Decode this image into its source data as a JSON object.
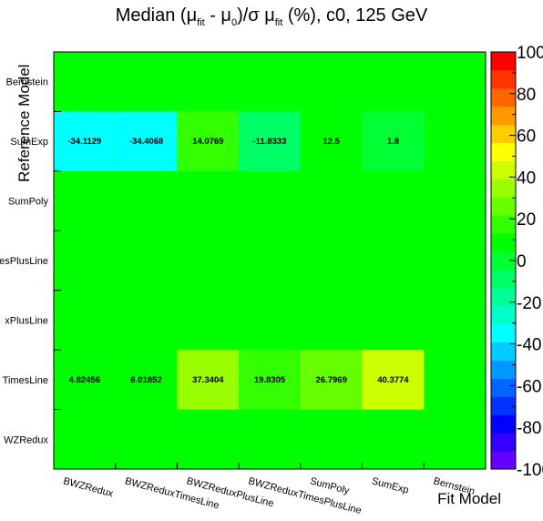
{
  "chart_data": {
    "type": "heatmap",
    "title": {
      "parts": [
        {
          "t": "Median (μ",
          "sub": false
        },
        {
          "t": "fit",
          "sub": true
        },
        {
          "t": " - μ",
          "sub": false
        },
        {
          "t": "0",
          "sub": true
        },
        {
          "t": ")/σ μ",
          "sub": false
        },
        {
          "t": "fit",
          "sub": true
        },
        {
          "t": " (%), c0, 125 GeV",
          "sub": false
        }
      ]
    },
    "xlabel": "Fit Model",
    "ylabel": "Reference Model",
    "x_categories": [
      "BWZRedux",
      "BWZReduxTimesLine",
      "BWZReduxPlusLine",
      "BWZReduxTimesPlusLine",
      "SumPoly",
      "SumExp",
      "Bernstein"
    ],
    "y_categories": [
      "BWZRedux",
      "BWZReduxTimesLine",
      "BWZReduxPlusLine",
      "BWZReduxTimesPlusLine",
      "SumPoly",
      "SumExp",
      "Bernstein"
    ],
    "y_tick_labels_visible": [
      "WZRedux",
      "TimesLine",
      "xPlusLine",
      "esPlusLine",
      "SumPoly",
      "SumExp",
      "Bernstein"
    ],
    "zlim": [
      -100,
      100
    ],
    "z_ticks": [
      "-100",
      "-80",
      "-60",
      "-40",
      "-20",
      "0",
      "20",
      "40",
      "60",
      "80",
      "100"
    ],
    "palette": [
      "#6600ff",
      "#3300ff",
      "#0000ff",
      "#0033ff",
      "#0066ff",
      "#0099ff",
      "#00ccff",
      "#00ffff",
      "#00ffcc",
      "#00ff99",
      "#00ff66",
      "#00ff33",
      "#00ff00",
      "#33ff00",
      "#66ff00",
      "#99ff00",
      "#ccff00",
      "#ffff00",
      "#ffcc00",
      "#ff9900",
      "#ff6600",
      "#ff3300",
      "#ff0000"
    ],
    "background_color": "#00ff00",
    "cells": [
      {
        "x": "BWZRedux",
        "y": "SumExp",
        "value": -34.1129,
        "label": "-34.1129"
      },
      {
        "x": "BWZReduxTimesLine",
        "y": "SumExp",
        "value": -34.4068,
        "label": "-34.4068"
      },
      {
        "x": "BWZReduxPlusLine",
        "y": "SumExp",
        "value": 14.0769,
        "label": "14.0769"
      },
      {
        "x": "BWZReduxTimesPlusLine",
        "y": "SumExp",
        "value": -11.8333,
        "label": "-11.8333"
      },
      {
        "x": "SumPoly",
        "y": "SumExp",
        "value": 12.5,
        "label": "12.5"
      },
      {
        "x": "SumExp",
        "y": "SumExp",
        "value": 1.8,
        "label": "1.8"
      },
      {
        "x": "BWZRedux",
        "y": "BWZReduxTimesLine",
        "value": 4.82456,
        "label": "4.82456"
      },
      {
        "x": "BWZReduxTimesLine",
        "y": "BWZReduxTimesLine",
        "value": 6.01852,
        "label": "6.01852"
      },
      {
        "x": "BWZReduxPlusLine",
        "y": "BWZReduxTimesLine",
        "value": 37.3404,
        "label": "37.3404"
      },
      {
        "x": "BWZReduxTimesPlusLine",
        "y": "BWZReduxTimesLine",
        "value": 19.8305,
        "label": "19.8305"
      },
      {
        "x": "SumPoly",
        "y": "BWZReduxTimesLine",
        "value": 26.7969,
        "label": "26.7969"
      },
      {
        "x": "SumExp",
        "y": "BWZReduxTimesLine",
        "value": 40.3774,
        "label": "40.3774"
      }
    ]
  }
}
